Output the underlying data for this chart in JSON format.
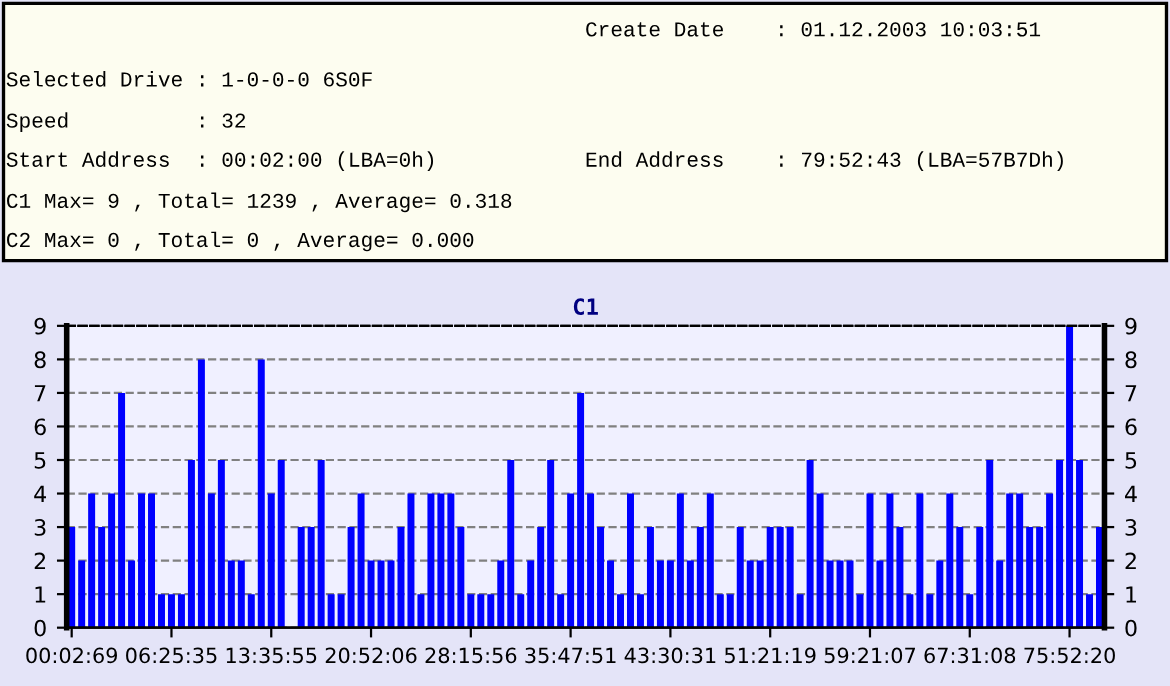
{
  "chart_data": {
    "type": "bar",
    "title": "C1",
    "annotations": [
      "Create Date    : 01.12.2003 10:03:51",
      "Selected Drive : 1-0-0-0 6S0F",
      "Speed          : 32",
      "Start Address  : 00:02:00 (LBA=0h)",
      "End Address    : 79:52:43 (LBA=57B7Dh)",
      "C1 Max= 9 , Total= 1239 , Average= 0.318",
      "C2 Max= 0 , Total= 0 , Average= 0.000"
    ],
    "categories": [
      "00:02:69",
      null,
      null,
      null,
      null,
      null,
      null,
      null,
      null,
      null,
      "06:25:35",
      null,
      null,
      null,
      null,
      null,
      null,
      null,
      null,
      null,
      "13:35:55",
      null,
      null,
      null,
      null,
      null,
      null,
      null,
      null,
      null,
      "20:52:06",
      null,
      null,
      null,
      null,
      null,
      null,
      null,
      null,
      null,
      "28:15:56",
      null,
      null,
      null,
      null,
      null,
      null,
      null,
      null,
      null,
      "35:47:51",
      null,
      null,
      null,
      null,
      null,
      null,
      null,
      null,
      null,
      "43:30:31",
      null,
      null,
      null,
      null,
      null,
      null,
      null,
      null,
      null,
      "51:21:19",
      null,
      null,
      null,
      null,
      null,
      null,
      null,
      null,
      null,
      "59:21:07",
      null,
      null,
      null,
      null,
      null,
      null,
      null,
      null,
      null,
      "67:31:08",
      null,
      null,
      null,
      null,
      null,
      null,
      null,
      null,
      null,
      "75:52:20",
      null,
      null,
      null
    ],
    "values": [
      3,
      2,
      4,
      3,
      4,
      7,
      2,
      4,
      4,
      1,
      1,
      1,
      5,
      8,
      4,
      5,
      2,
      2,
      1,
      8,
      4,
      5,
      0,
      3,
      3,
      5,
      1,
      1,
      3,
      4,
      2,
      2,
      2,
      3,
      4,
      1,
      4,
      4,
      4,
      3,
      1,
      1,
      1,
      2,
      5,
      1,
      2,
      3,
      5,
      1,
      4,
      7,
      4,
      3,
      2,
      1,
      4,
      1,
      3,
      2,
      2,
      4,
      2,
      3,
      4,
      1,
      1,
      3,
      2,
      2,
      3,
      3,
      3,
      1,
      5,
      4,
      2,
      2,
      2,
      1,
      4,
      2,
      4,
      3,
      1,
      4,
      1,
      2,
      4,
      3,
      1,
      3,
      5,
      2,
      4,
      4,
      3,
      3,
      4,
      5,
      9,
      5,
      1,
      3
    ],
    "color": "#0000ff",
    "ylim": [
      0,
      9
    ],
    "yticks": [
      0,
      1,
      2,
      3,
      4,
      5,
      6,
      7,
      8,
      9
    ],
    "y2lim": [
      0,
      9
    ],
    "y2ticks": [
      0,
      1,
      2,
      3,
      4,
      5,
      6,
      7,
      8,
      9
    ],
    "grid": "y"
  }
}
